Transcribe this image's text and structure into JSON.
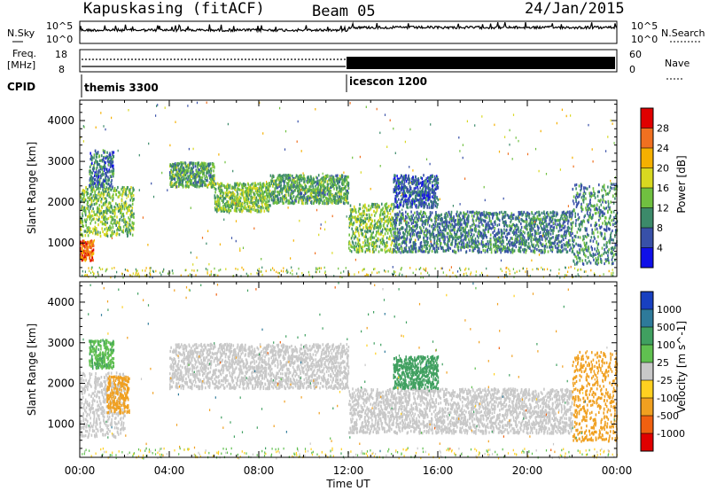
{
  "header": {
    "left": "Kapuskasing (fitACF)",
    "center": "Beam 05",
    "right": "24/Jan/2015"
  },
  "panels": {
    "nsky": {
      "left_label": "N.Sky",
      "right_label": "N.Search",
      "left_ticks": [
        "10^5",
        "10^0"
      ],
      "right_ticks": [
        "10^5",
        "10^0"
      ]
    },
    "freq": {
      "left_label_1": "Freq.",
      "left_label_2": "[MHz]",
      "right_label": "Nave",
      "left_ticks": [
        "18",
        "8"
      ],
      "right_ticks": [
        "60",
        "0"
      ]
    },
    "cpid": {
      "label": "CPID",
      "mode1": "themis 3300",
      "mode2": "icescon 1200"
    }
  },
  "chart_data": [
    {
      "type": "heatmap",
      "title": "",
      "xlabel": "",
      "ylabel": "Slant Range [km]",
      "x_ticks": [
        "00:00",
        "04:00",
        "08:00",
        "12:00",
        "16:00",
        "20:00",
        "00:00"
      ],
      "y_ticks": [
        "1000",
        "2000",
        "3000",
        "4000"
      ],
      "ylim": [
        180,
        4500
      ],
      "colorbar": {
        "label": "Power [dB]",
        "ticks": [
          "28",
          "24",
          "20",
          "16",
          "12",
          "8",
          "4"
        ],
        "colors": [
          "#e00000",
          "#f07020",
          "#f5b000",
          "#d8d820",
          "#70c040",
          "#3c8a6a",
          "#3850a8",
          "#1010e8"
        ]
      },
      "regions": [
        {
          "t_start": 0.0,
          "t_end": 0.6,
          "r_start": 600,
          "r_end": 1100,
          "level": 26
        },
        {
          "t_start": 0.0,
          "t_end": 2.4,
          "r_start": 1200,
          "r_end": 2400,
          "level": 14
        },
        {
          "t_start": 0.4,
          "t_end": 1.5,
          "r_start": 2400,
          "r_end": 3300,
          "level": 8
        },
        {
          "t_start": 4.0,
          "t_end": 6.0,
          "r_start": 2400,
          "r_end": 3000,
          "level": 12
        },
        {
          "t_start": 6.0,
          "t_end": 8.5,
          "r_start": 1800,
          "r_end": 2500,
          "level": 14
        },
        {
          "t_start": 8.5,
          "t_end": 12.0,
          "r_start": 2000,
          "r_end": 2700,
          "level": 12
        },
        {
          "t_start": 12.0,
          "t_end": 14.0,
          "r_start": 800,
          "r_end": 2000,
          "level": 14
        },
        {
          "t_start": 14.0,
          "t_end": 22.0,
          "r_start": 800,
          "r_end": 1800,
          "level": 9
        },
        {
          "t_start": 14.0,
          "t_end": 16.0,
          "r_start": 1900,
          "r_end": 2700,
          "level": 7
        },
        {
          "t_start": 22.0,
          "t_end": 24.0,
          "r_start": 500,
          "r_end": 2500,
          "level": 10
        }
      ]
    },
    {
      "type": "heatmap",
      "title": "",
      "xlabel": "Time UT",
      "ylabel": "Slant Range [km]",
      "x_ticks": [
        "00:00",
        "04:00",
        "08:00",
        "12:00",
        "16:00",
        "20:00",
        "00:00"
      ],
      "y_ticks": [
        "1000",
        "2000",
        "3000",
        "4000"
      ],
      "ylim": [
        180,
        4500
      ],
      "colorbar": {
        "label": "Velocity [m s^-1]",
        "ticks": [
          "1000",
          "500",
          "100",
          "25",
          "-25",
          "-100",
          "-500",
          "-1000"
        ],
        "colors": [
          "#1840c0",
          "#2e7a9a",
          "#40a060",
          "#60c050",
          "#c8c8c8",
          "#ffd020",
          "#f0a020",
          "#f06010",
          "#e00000"
        ]
      },
      "regions": [
        {
          "t_start": 0.0,
          "t_end": 2.0,
          "r_start": 700,
          "r_end": 2300,
          "level": 0
        },
        {
          "t_start": 1.2,
          "t_end": 2.2,
          "r_start": 1300,
          "r_end": 2200,
          "level": -200
        },
        {
          "t_start": 0.4,
          "t_end": 1.5,
          "r_start": 2400,
          "r_end": 3100,
          "level": 80
        },
        {
          "t_start": 4.0,
          "t_end": 12.0,
          "r_start": 1900,
          "r_end": 3000,
          "level": 0
        },
        {
          "t_start": 12.0,
          "t_end": 22.0,
          "r_start": 800,
          "r_end": 1900,
          "level": 0
        },
        {
          "t_start": 14.0,
          "t_end": 16.0,
          "r_start": 1900,
          "r_end": 2700,
          "level": 300
        },
        {
          "t_start": 22.0,
          "t_end": 24.0,
          "r_start": 600,
          "r_end": 2800,
          "level": -300
        }
      ]
    }
  ]
}
